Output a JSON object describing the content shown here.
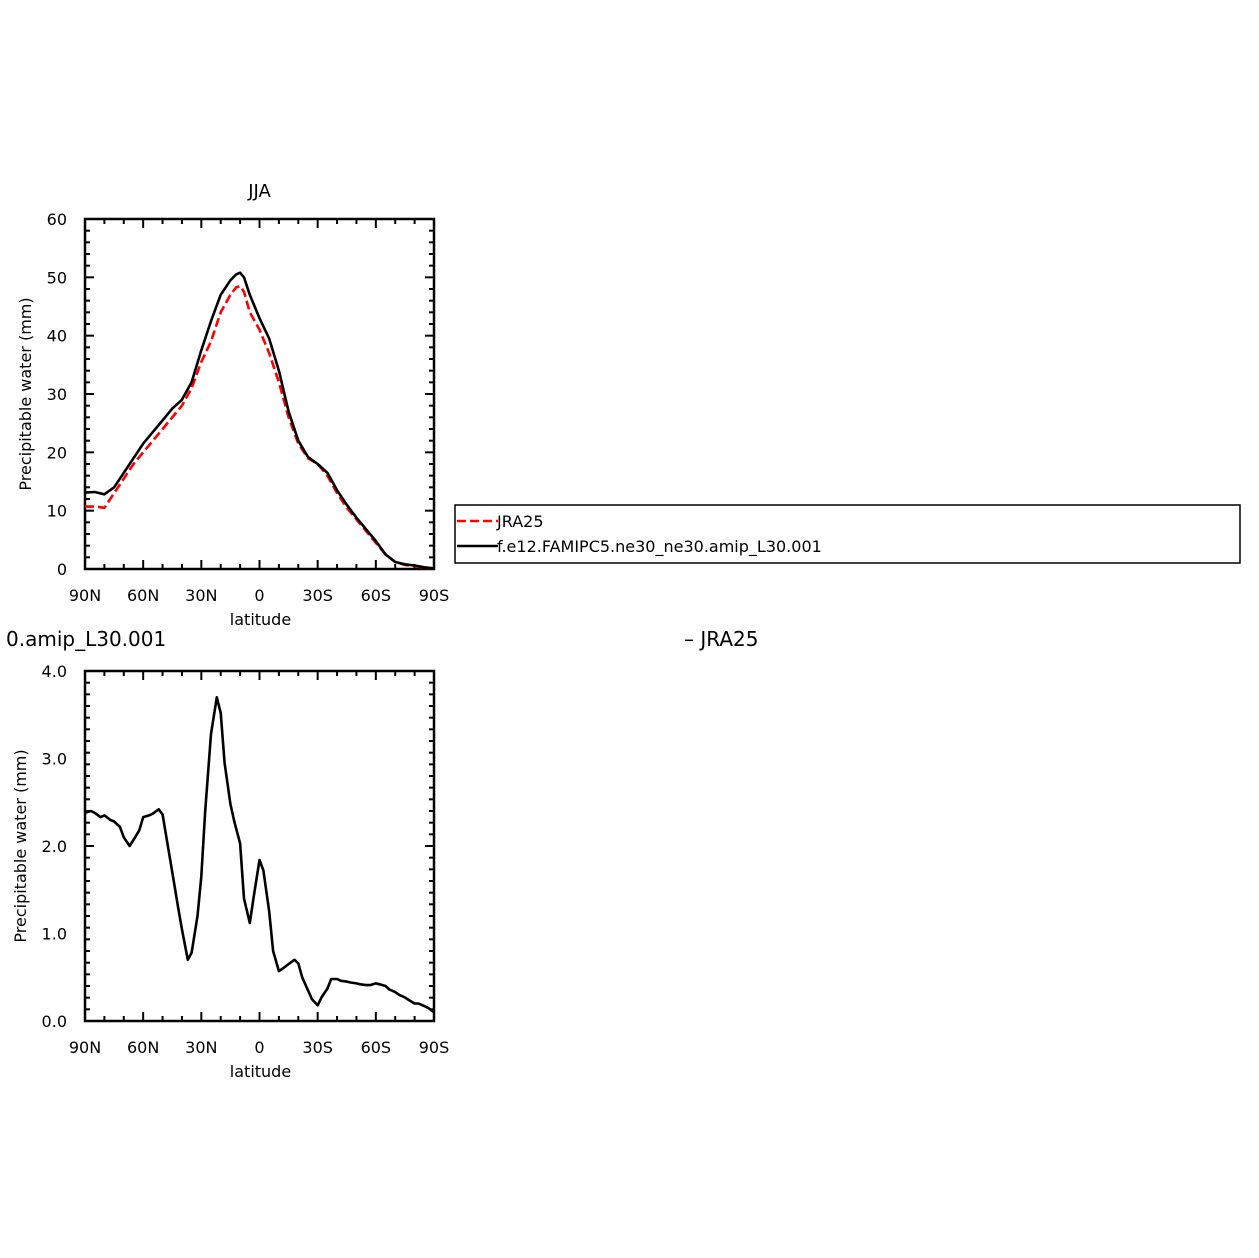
{
  "chart_data": [
    {
      "type": "line",
      "title": "JJA",
      "xlabel": "latitude",
      "ylabel": "Precipitable water (mm)",
      "xlim": [
        90,
        -90
      ],
      "ylim": [
        0,
        60
      ],
      "x_ticks": [
        {
          "value": 90,
          "label": "90N"
        },
        {
          "value": 60,
          "label": "60N"
        },
        {
          "value": 30,
          "label": "30N"
        },
        {
          "value": 0,
          "label": "0"
        },
        {
          "value": -30,
          "label": "30S"
        },
        {
          "value": -60,
          "label": "60S"
        },
        {
          "value": -90,
          "label": "90S"
        }
      ],
      "y_ticks": [
        {
          "value": 0,
          "label": "0"
        },
        {
          "value": 10,
          "label": "10"
        },
        {
          "value": 20,
          "label": "20"
        },
        {
          "value": 30,
          "label": "30"
        },
        {
          "value": 40,
          "label": "40"
        },
        {
          "value": 50,
          "label": "50"
        },
        {
          "value": 60,
          "label": "60"
        }
      ],
      "legend": {
        "placement": "right"
      },
      "series": [
        {
          "name": "JRA25",
          "color": "#ff0000",
          "dash": "dashed",
          "x": [
            90,
            85,
            80,
            75,
            70,
            65,
            60,
            55,
            50,
            45,
            40,
            35,
            30,
            25,
            20,
            15,
            12,
            10,
            8,
            5,
            0,
            -5,
            -10,
            -15,
            -20,
            -25,
            -30,
            -35,
            -40,
            -45,
            -50,
            -55,
            -60,
            -65,
            -70,
            -75,
            -80,
            -85,
            -90
          ],
          "y": [
            10.7,
            10.7,
            10.5,
            13,
            15.5,
            18,
            20,
            22,
            24,
            26,
            28,
            31,
            35.5,
            39,
            44,
            47,
            48.3,
            48.5,
            47.5,
            44,
            41,
            37,
            32,
            26,
            21.5,
            19,
            18,
            16,
            13,
            10.5,
            8.5,
            6.5,
            4.5,
            2.5,
            1.2,
            0.7,
            0.5,
            0.2,
            0.1
          ]
        },
        {
          "name": "f.e12.FAMIPC5.ne30_ne30.amip_L30.001",
          "color": "#000000",
          "dash": "solid",
          "x": [
            90,
            85,
            80,
            75,
            70,
            65,
            60,
            55,
            50,
            45,
            40,
            35,
            30,
            25,
            20,
            15,
            12,
            10,
            8,
            5,
            0,
            -5,
            -10,
            -15,
            -20,
            -25,
            -30,
            -35,
            -40,
            -45,
            -50,
            -55,
            -60,
            -65,
            -70,
            -75,
            -80,
            -85,
            -90
          ],
          "y": [
            13.1,
            13.2,
            12.8,
            14,
            16.5,
            19,
            21.5,
            23.5,
            25.5,
            27.5,
            29,
            32,
            37.5,
            42.5,
            47,
            49.5,
            50.5,
            50.8,
            50,
            47,
            43,
            39.5,
            34,
            27,
            22,
            19.2,
            18,
            16.5,
            13.5,
            11,
            8.8,
            6.8,
            4.8,
            2.5,
            1.2,
            0.8,
            0.6,
            0.3,
            0.1
          ]
        }
      ]
    },
    {
      "type": "line",
      "title_fragment_left": "0.amip_L30.001",
      "title_fragment_right": "– JRA25",
      "xlabel": "latitude",
      "ylabel": "Precipitable water (mm)",
      "xlim": [
        90,
        -90
      ],
      "ylim": [
        0,
        4
      ],
      "x_ticks": [
        {
          "value": 90,
          "label": "90N"
        },
        {
          "value": 60,
          "label": "60N"
        },
        {
          "value": 30,
          "label": "30N"
        },
        {
          "value": 0,
          "label": "0"
        },
        {
          "value": -30,
          "label": "30S"
        },
        {
          "value": -60,
          "label": "60S"
        },
        {
          "value": -90,
          "label": "90S"
        }
      ],
      "y_ticks": [
        {
          "value": 0,
          "label": "0.0"
        },
        {
          "value": 1,
          "label": "1.0"
        },
        {
          "value": 2,
          "label": "2.0"
        },
        {
          "value": 3,
          "label": "3.0"
        },
        {
          "value": 4,
          "label": "4.0"
        }
      ],
      "series": [
        {
          "color": "#000000",
          "dash": "solid",
          "x": [
            90,
            87,
            85,
            82,
            80,
            77,
            75,
            72,
            70,
            67,
            65,
            62,
            60,
            57,
            55,
            52,
            50,
            48,
            45,
            42,
            40,
            37,
            35,
            32,
            30,
            28,
            25,
            22,
            20,
            18,
            15,
            13,
            10,
            8,
            5,
            3,
            0,
            -2,
            -5,
            -7,
            -10,
            -12,
            -15,
            -18,
            -20,
            -22,
            -25,
            -27,
            -30,
            -32,
            -35,
            -37,
            -40,
            -42,
            -45,
            -47,
            -50,
            -52,
            -55,
            -57,
            -60,
            -62,
            -65,
            -67,
            -70,
            -72,
            -75,
            -77,
            -80,
            -82,
            -85,
            -87,
            -90
          ],
          "y": [
            2.38,
            2.4,
            2.38,
            2.33,
            2.35,
            2.3,
            2.28,
            2.22,
            2.1,
            2.0,
            2.07,
            2.18,
            2.33,
            2.35,
            2.37,
            2.42,
            2.36,
            2.1,
            1.7,
            1.3,
            1.05,
            0.7,
            0.78,
            1.2,
            1.65,
            2.4,
            3.28,
            3.7,
            3.52,
            2.95,
            2.48,
            2.28,
            2.03,
            1.4,
            1.12,
            1.42,
            1.84,
            1.72,
            1.25,
            0.8,
            0.57,
            0.6,
            0.65,
            0.7,
            0.66,
            0.5,
            0.35,
            0.25,
            0.18,
            0.27,
            0.37,
            0.48,
            0.48,
            0.46,
            0.45,
            0.44,
            0.43,
            0.42,
            0.41,
            0.41,
            0.43,
            0.42,
            0.4,
            0.36,
            0.33,
            0.3,
            0.27,
            0.24,
            0.2,
            0.2,
            0.17,
            0.15,
            0.1
          ]
        }
      ]
    }
  ]
}
